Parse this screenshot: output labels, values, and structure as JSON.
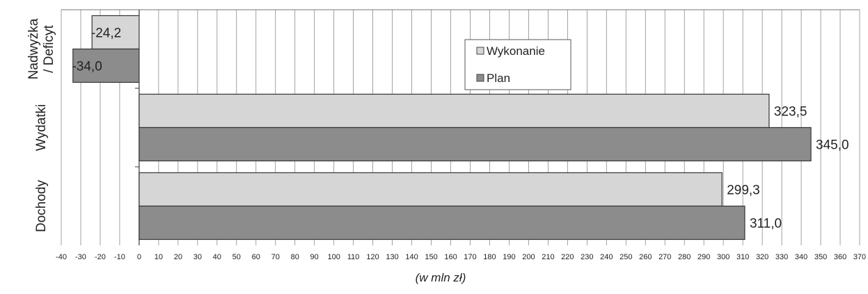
{
  "chart_data": {
    "type": "bar",
    "orientation": "horizontal",
    "categories": [
      "Nadwyżka / Deficyt",
      "Wydatki",
      "Dochody"
    ],
    "category_label_lines": [
      [
        "Nadwyżka",
        "/ Deficyt"
      ],
      [
        "Wydatki"
      ],
      [
        "Dochody"
      ]
    ],
    "series": [
      {
        "name": "Wykonanie",
        "values": [
          -24.2,
          323.5,
          299.3
        ],
        "labels": [
          "-24,2",
          "323,5",
          "299,3"
        ],
        "color": "#d6d6d6"
      },
      {
        "name": "Plan",
        "values": [
          -34.0,
          345.0,
          311.0
        ],
        "labels": [
          "-34,0",
          "345,0",
          "311,0"
        ],
        "color": "#8c8c8c"
      }
    ],
    "xlabel": "(w mln zł)",
    "xlim": [
      -40,
      370
    ],
    "xtick_step": 10,
    "xtick_labels": [
      "-40",
      "-30",
      "-20",
      "-10",
      "0",
      "10",
      "20",
      "30",
      "40",
      "50",
      "60",
      "70",
      "80",
      "90",
      "100",
      "110",
      "120",
      "130",
      "140",
      "150",
      "160",
      "170",
      "180",
      "190",
      "200",
      "210",
      "220",
      "230",
      "240",
      "250",
      "260",
      "270",
      "280",
      "290",
      "300",
      "310",
      "320",
      "330",
      "340",
      "350",
      "360",
      "370"
    ],
    "grid": true,
    "legend": "top-center"
  }
}
